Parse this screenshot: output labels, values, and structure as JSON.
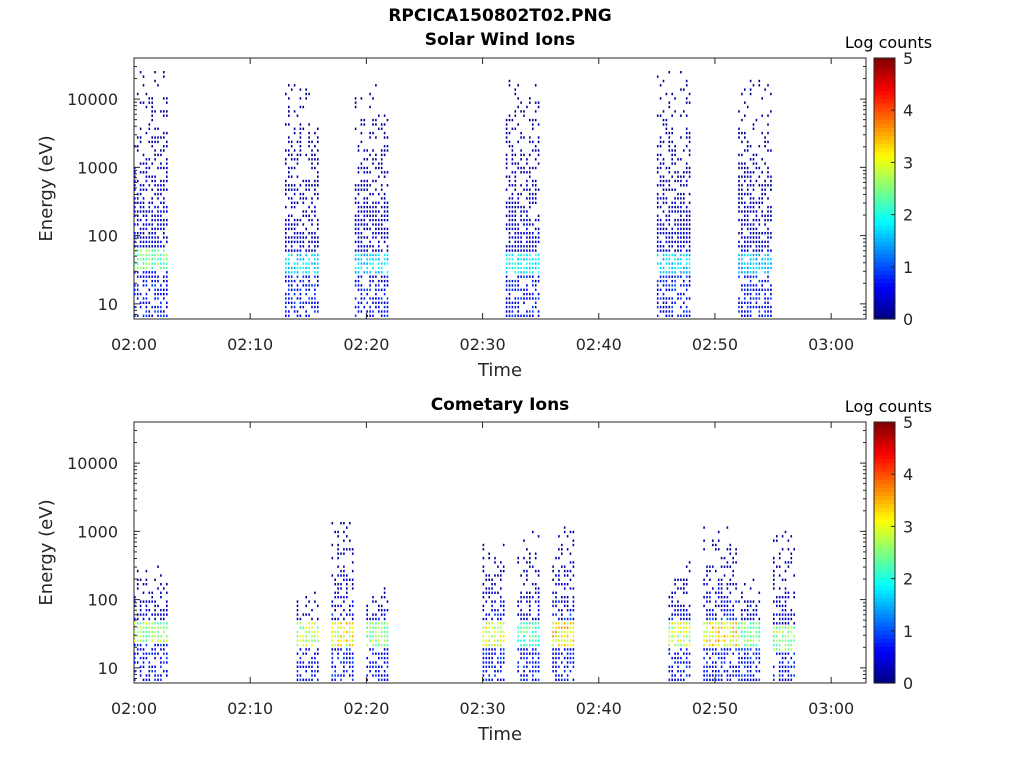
{
  "figure": {
    "title": "RPCICA150802T02.PNG"
  },
  "colorbar": {
    "label": "Log counts",
    "ticks": [
      "0",
      "1",
      "2",
      "3",
      "4",
      "5"
    ],
    "range": [
      0,
      5
    ],
    "colormap": "jet"
  },
  "chart_data": [
    {
      "type": "heatmap",
      "title": "Solar Wind Ions",
      "xlabel": "Time",
      "ylabel": "Energy (eV)",
      "x_ticks": [
        "02:00",
        "02:10",
        "02:20",
        "02:30",
        "02:40",
        "02:50",
        "03:00"
      ],
      "y_ticks": [
        "10",
        "100",
        "1000",
        "10000"
      ],
      "xlim": [
        "02:00",
        "03:03"
      ],
      "ylim": [
        6,
        40000
      ],
      "y_scale": "log",
      "grid": false,
      "colorbar_range": [
        0,
        5
      ],
      "bursts": [
        {
          "start": "02:00",
          "end": "02:03",
          "peak_energy_eV": 40,
          "peak_log_counts": 2.8,
          "max_energy_eV": 20000
        },
        {
          "start": "02:13",
          "end": "02:16",
          "peak_energy_eV": 35,
          "peak_log_counts": 2.0,
          "max_energy_eV": 15000
        },
        {
          "start": "02:19",
          "end": "02:22",
          "peak_energy_eV": 35,
          "peak_log_counts": 2.0,
          "max_energy_eV": 15000
        },
        {
          "start": "02:32",
          "end": "02:35",
          "peak_energy_eV": 35,
          "peak_log_counts": 2.2,
          "max_energy_eV": 15000
        },
        {
          "start": "02:45",
          "end": "02:48",
          "peak_energy_eV": 35,
          "peak_log_counts": 2.0,
          "max_energy_eV": 20000
        },
        {
          "start": "02:52",
          "end": "02:55",
          "peak_energy_eV": 35,
          "peak_log_counts": 1.8,
          "max_energy_eV": 15000
        }
      ]
    },
    {
      "type": "heatmap",
      "title": "Cometary Ions",
      "xlabel": "Time",
      "ylabel": "Energy (eV)",
      "x_ticks": [
        "02:00",
        "02:10",
        "02:20",
        "02:30",
        "02:40",
        "02:50",
        "03:00"
      ],
      "y_ticks": [
        "10",
        "100",
        "1000",
        "10000"
      ],
      "xlim": [
        "02:00",
        "03:03"
      ],
      "ylim": [
        6,
        40000
      ],
      "y_scale": "log",
      "grid": false,
      "colorbar_range": [
        0,
        5
      ],
      "bursts": [
        {
          "start": "02:00",
          "end": "02:03",
          "peak_energy_eV": 30,
          "peak_log_counts": 3.0,
          "max_energy_eV": 250
        },
        {
          "start": "02:14",
          "end": "02:16",
          "peak_energy_eV": 28,
          "peak_log_counts": 3.2,
          "max_energy_eV": 100
        },
        {
          "start": "02:17",
          "end": "02:19",
          "peak_energy_eV": 28,
          "peak_log_counts": 3.6,
          "max_energy_eV": 1100
        },
        {
          "start": "02:20",
          "end": "02:22",
          "peak_energy_eV": 28,
          "peak_log_counts": 3.0,
          "max_energy_eV": 150
        },
        {
          "start": "02:30",
          "end": "02:32",
          "peak_energy_eV": 28,
          "peak_log_counts": 3.4,
          "max_energy_eV": 600
        },
        {
          "start": "02:33",
          "end": "02:35",
          "peak_energy_eV": 28,
          "peak_log_counts": 2.6,
          "max_energy_eV": 1000
        },
        {
          "start": "02:36",
          "end": "02:38",
          "peak_energy_eV": 28,
          "peak_log_counts": 3.8,
          "max_energy_eV": 1000
        },
        {
          "start": "02:46",
          "end": "02:48",
          "peak_energy_eV": 28,
          "peak_log_counts": 3.3,
          "max_energy_eV": 300
        },
        {
          "start": "02:49",
          "end": "02:52",
          "peak_energy_eV": 28,
          "peak_log_counts": 3.7,
          "max_energy_eV": 900
        },
        {
          "start": "02:52",
          "end": "02:54",
          "peak_energy_eV": 28,
          "peak_log_counts": 2.8,
          "max_energy_eV": 150
        },
        {
          "start": "02:55",
          "end": "02:57",
          "peak_energy_eV": 25,
          "peak_log_counts": 3.0,
          "max_energy_eV": 1000
        }
      ]
    }
  ]
}
